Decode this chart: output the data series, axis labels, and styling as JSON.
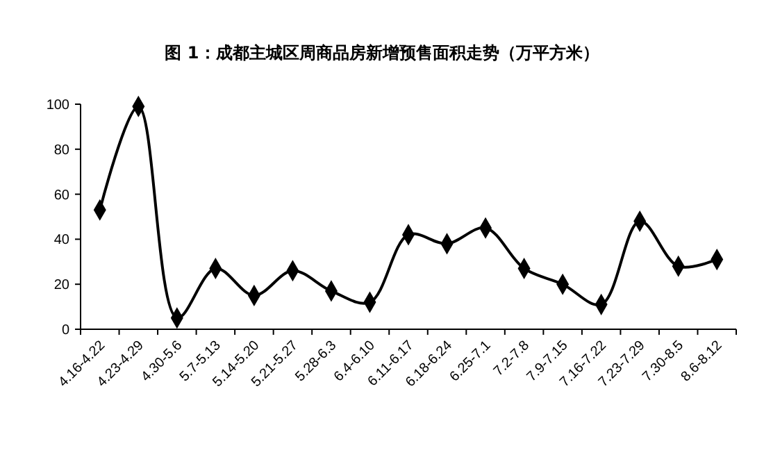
{
  "chart_data": {
    "type": "line",
    "title": "图 1：成都主城区周商品房新增预售面积走势（万平方米）",
    "categories": [
      "4.16-4.22",
      "4.23-4.29",
      "4.30-5.6",
      "5.7-5.13",
      "5.14-5.20",
      "5.21-5.27",
      "5.28-6.3",
      "6.4-6.10",
      "6.11-6.17",
      "6.18-6.24",
      "6.25-7.1",
      "7.2-7.8",
      "7.9-7.15",
      "7.16-7.22",
      "7.23-7.29",
      "7.30-8.5",
      "8.6-8.12"
    ],
    "series": [
      {
        "color": "#000000",
        "values": [
          53,
          99,
          5,
          27,
          15,
          26,
          17,
          12,
          42,
          38,
          45,
          27,
          20,
          11,
          48,
          28,
          31
        ]
      }
    ],
    "ylim": [
      0,
      100
    ],
    "yticks": [
      0,
      20,
      40,
      60,
      80,
      100
    ],
    "marker": "diamond",
    "line_style": "solid",
    "grid": false
  }
}
